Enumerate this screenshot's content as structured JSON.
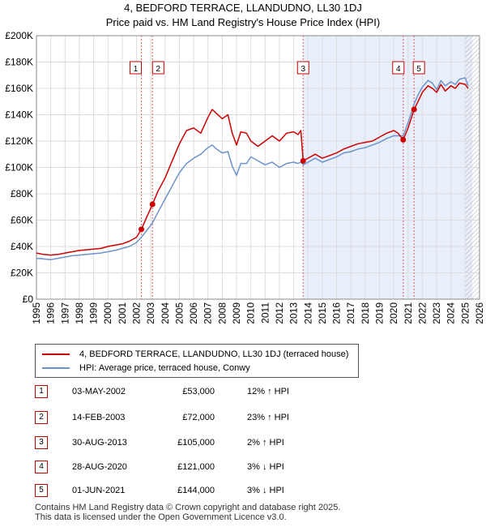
{
  "chart_data": {
    "type": "line",
    "title": "4, BEDFORD TERRACE, LLANDUDNO, LL30 1DJ",
    "subtitle": "Price paid vs. HM Land Registry's House Price Index (HPI)",
    "x_range": [
      1995,
      2026
    ],
    "ylim": [
      0,
      200000
    ],
    "y_ticks": [
      0,
      20000,
      40000,
      60000,
      80000,
      100000,
      120000,
      140000,
      160000,
      180000,
      200000
    ],
    "y_tick_labels": [
      "£0",
      "£20K",
      "£40K",
      "£60K",
      "£80K",
      "£100K",
      "£120K",
      "£140K",
      "£160K",
      "£180K",
      "£200K"
    ],
    "x_tick_labels": [
      "1995",
      "1996",
      "1997",
      "1998",
      "1999",
      "2000",
      "2001",
      "2002",
      "2003",
      "2004",
      "2005",
      "2006",
      "2007",
      "2008",
      "2009",
      "2010",
      "2011",
      "2012",
      "2013",
      "2014",
      "2015",
      "2016",
      "2017",
      "2018",
      "2019",
      "2020",
      "2021",
      "2022",
      "2023",
      "2024",
      "2025",
      "2026"
    ],
    "shaded_region": [
      2013.66,
      2025.5
    ],
    "hatched_from": 2025.0,
    "series": [
      {
        "name": "4, BEDFORD TERRACE, LLANDUDNO, LL30 1DJ (terraced house)",
        "color": "#cc0000",
        "x": [
          1995.0,
          1995.5,
          1996.0,
          1996.5,
          1997.0,
          1997.5,
          1998.0,
          1998.5,
          1999.0,
          1999.5,
          2000.0,
          2000.5,
          2001.0,
          2001.5,
          2002.0,
          2002.34,
          2002.7,
          2003.12,
          2003.5,
          2004.0,
          2004.5,
          2005.0,
          2005.5,
          2006.0,
          2006.5,
          2007.0,
          2007.3,
          2007.6,
          2008.0,
          2008.4,
          2008.7,
          2009.0,
          2009.3,
          2009.7,
          2010.0,
          2010.5,
          2011.0,
          2011.5,
          2012.0,
          2012.5,
          2013.0,
          2013.3,
          2013.5,
          2013.66,
          2014.0,
          2014.5,
          2015.0,
          2015.5,
          2016.0,
          2016.5,
          2017.0,
          2017.5,
          2018.0,
          2018.5,
          2019.0,
          2019.5,
          2020.0,
          2020.3,
          2020.66,
          2021.0,
          2021.42,
          2021.7,
          2022.0,
          2022.4,
          2022.7,
          2023.0,
          2023.3,
          2023.6,
          2024.0,
          2024.3,
          2024.6,
          2025.0,
          2025.2
        ],
        "values": [
          35000,
          34000,
          33500,
          34000,
          35000,
          36000,
          37000,
          37500,
          38000,
          38500,
          40000,
          41000,
          42000,
          44000,
          47000,
          53000,
          62000,
          72000,
          82000,
          92000,
          105000,
          118000,
          128000,
          130000,
          126000,
          138000,
          144000,
          141000,
          137000,
          140000,
          126000,
          117000,
          127000,
          126000,
          120000,
          116000,
          120000,
          124000,
          120000,
          126000,
          127000,
          125000,
          128000,
          105000,
          107000,
          110000,
          107000,
          109000,
          111000,
          114000,
          116000,
          118000,
          119000,
          120000,
          123000,
          126000,
          128000,
          126000,
          121000,
          130000,
          144000,
          150000,
          157000,
          162000,
          160000,
          157000,
          163000,
          158000,
          162000,
          160000,
          164000,
          163000,
          160000
        ]
      },
      {
        "name": "HPI: Average price, terraced house, Conwy",
        "color": "#6b93cc",
        "x": [
          1995.0,
          1995.5,
          1996.0,
          1996.5,
          1997.0,
          1997.5,
          1998.0,
          1998.5,
          1999.0,
          1999.5,
          2000.0,
          2000.5,
          2001.0,
          2001.5,
          2002.0,
          2002.34,
          2002.7,
          2003.12,
          2003.5,
          2004.0,
          2004.5,
          2005.0,
          2005.5,
          2006.0,
          2006.5,
          2007.0,
          2007.3,
          2007.6,
          2008.0,
          2008.4,
          2008.7,
          2009.0,
          2009.3,
          2009.7,
          2010.0,
          2010.5,
          2011.0,
          2011.5,
          2012.0,
          2012.5,
          2013.0,
          2013.3,
          2013.5,
          2013.66,
          2014.0,
          2014.5,
          2015.0,
          2015.5,
          2016.0,
          2016.5,
          2017.0,
          2017.5,
          2018.0,
          2018.5,
          2019.0,
          2019.5,
          2020.0,
          2020.3,
          2020.66,
          2021.0,
          2021.42,
          2021.7,
          2022.0,
          2022.4,
          2022.7,
          2023.0,
          2023.3,
          2023.6,
          2024.0,
          2024.3,
          2024.6,
          2025.0,
          2025.2
        ],
        "values": [
          31000,
          30500,
          30000,
          31000,
          32000,
          33000,
          33500,
          34000,
          34500,
          35000,
          36000,
          37000,
          38500,
          40000,
          43000,
          47000,
          52000,
          58000,
          66000,
          76000,
          86000,
          96000,
          103000,
          107000,
          110000,
          115000,
          117000,
          114000,
          111000,
          112000,
          101000,
          94000,
          103000,
          103000,
          108000,
          105000,
          102000,
          104000,
          100000,
          103000,
          104000,
          103000,
          104000,
          102000,
          104000,
          107000,
          104000,
          106000,
          108000,
          111000,
          112000,
          114000,
          115000,
          117000,
          119000,
          122000,
          124000,
          124000,
          124000,
          134000,
          148000,
          155000,
          161000,
          166000,
          164000,
          159000,
          166000,
          162000,
          165000,
          163000,
          167000,
          168000,
          162000
        ]
      }
    ],
    "sale_markers": [
      {
        "label": "1",
        "x": 2002.34,
        "y": 53000
      },
      {
        "label": "2",
        "x": 2003.12,
        "y": 72000
      },
      {
        "label": "3",
        "x": 2013.66,
        "y": 105000
      },
      {
        "label": "4",
        "x": 2020.66,
        "y": 121000
      },
      {
        "label": "5",
        "x": 2021.42,
        "y": 144000
      }
    ]
  },
  "legend": {
    "property": "4, BEDFORD TERRACE, LLANDUDNO, LL30 1DJ (terraced house)",
    "hpi": "HPI: Average price, terraced house, Conwy"
  },
  "sales": [
    {
      "num": "1",
      "date": "03-MAY-2002",
      "price": "£53,000",
      "hpi": "12% ↑ HPI"
    },
    {
      "num": "2",
      "date": "14-FEB-2003",
      "price": "£72,000",
      "hpi": "23% ↑ HPI"
    },
    {
      "num": "3",
      "date": "30-AUG-2013",
      "price": "£105,000",
      "hpi": "2% ↑ HPI"
    },
    {
      "num": "4",
      "date": "28-AUG-2020",
      "price": "£121,000",
      "hpi": "3% ↓ HPI"
    },
    {
      "num": "5",
      "date": "01-JUN-2021",
      "price": "£144,000",
      "hpi": "3% ↓ HPI"
    }
  ],
  "footer": {
    "line1": "Contains HM Land Registry data © Crown copyright and database right 2025.",
    "line2": "This data is licensed under the Open Government Licence v3.0."
  }
}
